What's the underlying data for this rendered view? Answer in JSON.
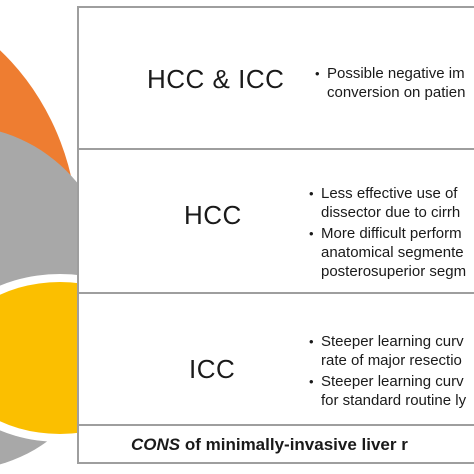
{
  "colors": {
    "orange": "#ee7d31",
    "gray": "#a8a8a8",
    "yellow": "#fbbf00",
    "border": "#9e9e9e"
  },
  "sections": [
    {
      "label": "HCC & ICC",
      "bullets": [
        "Possible negative im",
        "conversion on patien"
      ],
      "bullet_items": [
        [
          "Possible negative im",
          "conversion on patien"
        ]
      ]
    },
    {
      "label": "HCC",
      "bullet_items": [
        [
          "Less effective use of",
          "dissector due to cirrh"
        ],
        [
          "More difficult perform",
          "anatomical segmente",
          "posterosuperior segm"
        ]
      ]
    },
    {
      "label": "ICC",
      "bullet_items": [
        [
          "Steeper learning curv",
          "rate of major resectio"
        ],
        [
          "Steeper learning curv",
          "for standard routine ly"
        ]
      ]
    }
  ],
  "footer": {
    "emphasis": "CONS",
    "rest": " of minimally-invasive liver r"
  }
}
